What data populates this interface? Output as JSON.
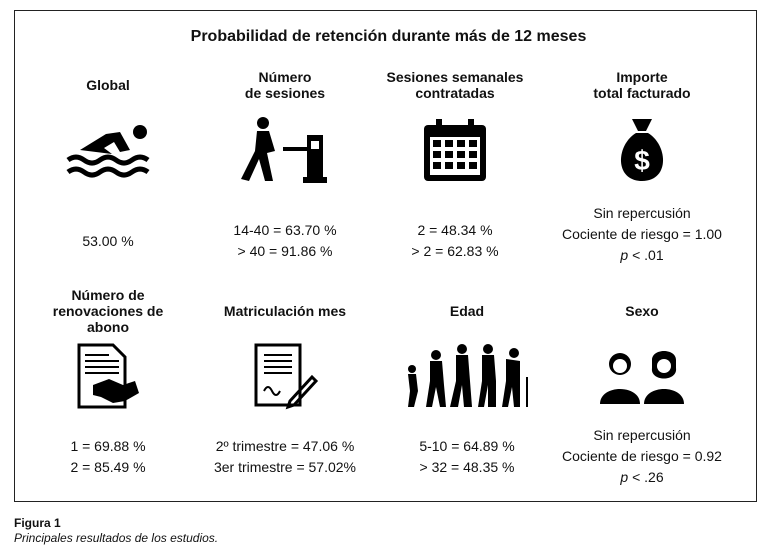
{
  "title": "Probabilidad de retención durante más de 12 meses",
  "cells": [
    {
      "head": [
        "Global"
      ],
      "icon": "swimmer-icon",
      "values": [
        "53.00 %"
      ]
    },
    {
      "head": [
        "Número",
        "de sesiones"
      ],
      "icon": "turnstile-walker-icon",
      "values": [
        "14-40 = 63.70 %",
        "> 40 = 91.86 %"
      ]
    },
    {
      "head": [
        "Sesiones semanales",
        "contratadas"
      ],
      "icon": "calendar-icon",
      "values": [
        "2 = 48.34 %",
        "> 2 = 62.83 %"
      ]
    },
    {
      "head": [
        "Importe",
        "total facturado"
      ],
      "icon": "money-bag-icon",
      "values": [
        "Sin repercusión",
        "Cociente de riesgo = 1.00"
      ],
      "p": "p",
      "p_rest": " < .01"
    },
    {
      "head": [
        "Número de",
        "renovaciones de",
        "abono"
      ],
      "icon": "contract-handshake-icon",
      "values": [
        "1 = 69.88 %",
        "2 = 85.49 %"
      ]
    },
    {
      "head": [
        "Matriculación mes"
      ],
      "icon": "document-signing-icon",
      "values": [
        "2º trimestre = 47.06 %",
        "3er trimestre = 57.02%"
      ]
    },
    {
      "head": [
        "Edad"
      ],
      "icon": "aging-people-icon",
      "values": [
        "5-10 = 64.89 %",
        "> 32 = 48.35 %"
      ]
    },
    {
      "head": [
        "Sexo"
      ],
      "icon": "man-woman-icon",
      "values": [
        "Sin repercusión",
        "Cociente de riesgo = 0.92"
      ],
      "p": "p",
      "p_rest": " < .26"
    }
  ],
  "caption": {
    "label": "Figura 1",
    "text": "Principales resultados de los estudios."
  }
}
